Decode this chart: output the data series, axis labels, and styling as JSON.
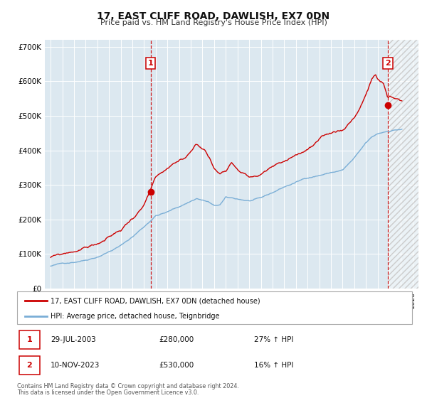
{
  "title": "17, EAST CLIFF ROAD, DAWLISH, EX7 0DN",
  "subtitle": "Price paid vs. HM Land Registry's House Price Index (HPI)",
  "red_label": "17, EAST CLIFF ROAD, DAWLISH, EX7 0DN (detached house)",
  "blue_label": "HPI: Average price, detached house, Teignbridge",
  "marker1_date": "29-JUL-2003",
  "marker1_price": 280000,
  "marker1_info": "27% ↑ HPI",
  "marker2_date": "10-NOV-2023",
  "marker2_price": 530000,
  "marker2_info": "16% ↑ HPI",
  "footnote1": "Contains HM Land Registry data © Crown copyright and database right 2024.",
  "footnote2": "This data is licensed under the Open Government Licence v3.0.",
  "xlim_min": 1994.5,
  "xlim_max": 2026.5,
  "ylim_min": 0,
  "ylim_max": 720000,
  "yticks": [
    0,
    100000,
    200000,
    300000,
    400000,
    500000,
    600000,
    700000
  ],
  "ytick_labels": [
    "£0",
    "£100K",
    "£200K",
    "£300K",
    "£400K",
    "£500K",
    "£600K",
    "£700K"
  ],
  "background_color": "#ffffff",
  "plot_bg_color": "#dce8f0",
  "grid_color": "#ffffff",
  "red_color": "#cc0000",
  "blue_color": "#7aaed6",
  "marker1_x": 2003.57,
  "marker2_x": 2023.87,
  "hatch_color": "#bbbbbb"
}
